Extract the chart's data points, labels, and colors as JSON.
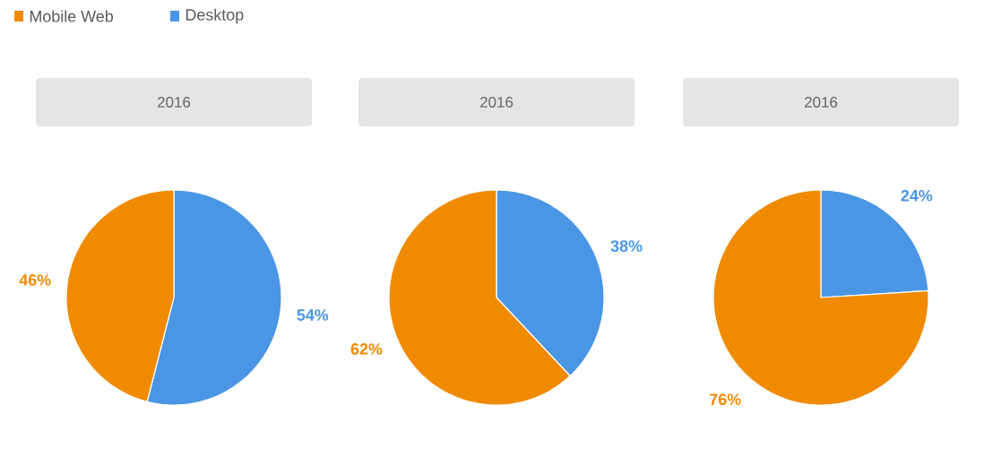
{
  "chart_data": [
    {
      "type": "pie",
      "title": "2016",
      "categories": [
        "Mobile Web",
        "Desktop"
      ],
      "values": [
        46,
        54
      ],
      "colors": [
        "#f08a00",
        "#4a96e4"
      ],
      "value_labels": [
        "46%",
        "54%"
      ],
      "legend": "top left"
    },
    {
      "type": "pie",
      "title": "2016",
      "categories": [
        null,
        null
      ],
      "values": [
        62,
        38
      ],
      "colors": [
        "#f08a00",
        "#4a96e4"
      ],
      "value_labels": [
        "62%",
        "38%"
      ]
    },
    {
      "type": "pie",
      "title": "2016",
      "categories": [
        null,
        null
      ],
      "values": [
        76,
        24
      ],
      "colors": [
        "#f08a00",
        "#4a96e4"
      ],
      "value_labels": [
        "76%",
        "24%"
      ]
    }
  ]
}
